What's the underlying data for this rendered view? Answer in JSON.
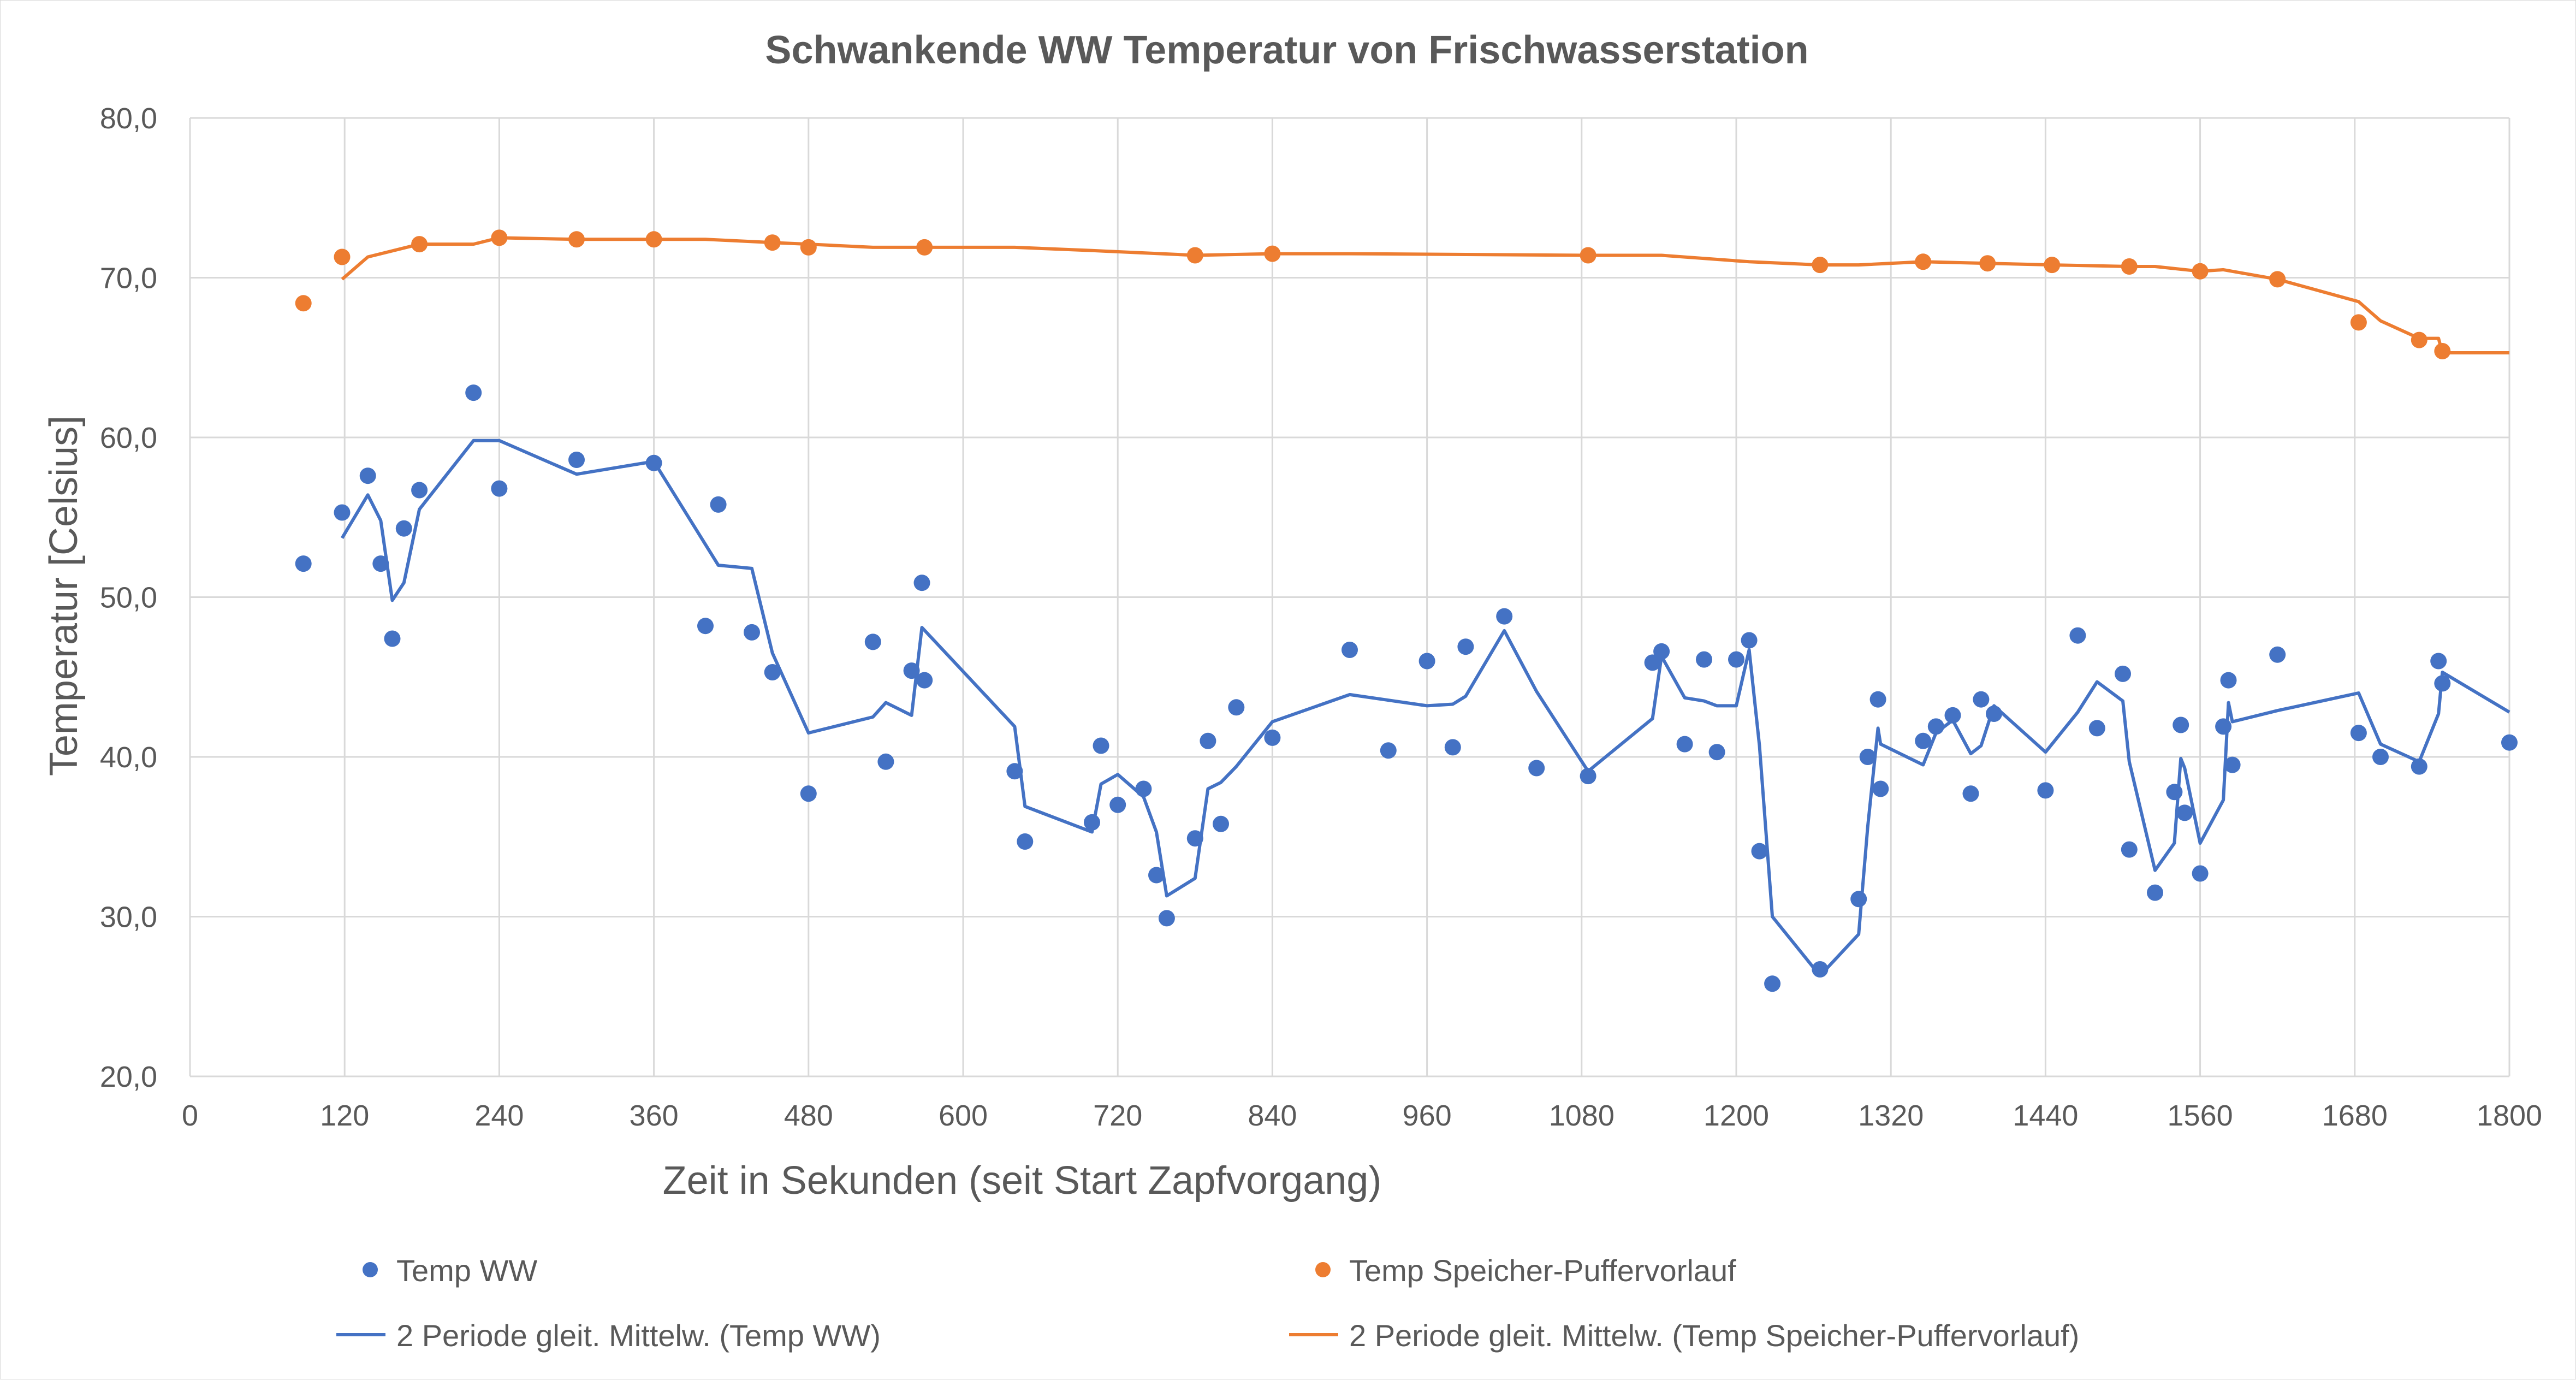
{
  "chart_data": {
    "type": "scatter",
    "title": "Schwankende WW Temperatur von Frischwasserstation",
    "xlabel": "Zeit in Sekunden (seit Start Zapfvorgang)",
    "ylabel": "Temperatur [Celsius]",
    "xlim": [
      0,
      1800
    ],
    "ylim": [
      20,
      80
    ],
    "x_ticks": [
      0,
      120,
      240,
      360,
      480,
      600,
      720,
      840,
      960,
      1080,
      1200,
      1320,
      1440,
      1560,
      1680,
      1800
    ],
    "x_tick_labels": [
      "0",
      "120",
      "240",
      "360",
      "480",
      "600",
      "720",
      "840",
      "960",
      "1080",
      "1200",
      "1320",
      "1440",
      "1560",
      "1680",
      "1800"
    ],
    "y_ticks": [
      20,
      30,
      40,
      50,
      60,
      70,
      80
    ],
    "y_tick_labels": [
      "20,0",
      "30,0",
      "40,0",
      "50,0",
      "60,0",
      "70,0",
      "80,0"
    ],
    "grid": true,
    "legend_position": "bottom",
    "colors": {
      "ww": "#4472c4",
      "speicher": "#ed7d31"
    },
    "series": [
      {
        "name": "Temp WW",
        "kind": "markers",
        "color": "#4472c4",
        "points": [
          [
            88,
            52.1
          ],
          [
            118,
            55.3
          ],
          [
            138,
            57.6
          ],
          [
            148,
            52.1
          ],
          [
            157,
            47.4
          ],
          [
            166,
            54.3
          ],
          [
            178,
            56.7
          ],
          [
            220,
            62.8
          ],
          [
            240,
            56.8
          ],
          [
            300,
            58.6
          ],
          [
            360,
            58.4
          ],
          [
            400,
            48.2
          ],
          [
            410,
            55.8
          ],
          [
            436,
            47.8
          ],
          [
            452,
            45.3
          ],
          [
            480,
            37.7
          ],
          [
            530,
            47.2
          ],
          [
            540,
            39.7
          ],
          [
            560,
            45.4
          ],
          [
            568,
            50.9
          ],
          [
            570,
            44.8
          ],
          [
            640,
            39.1
          ],
          [
            648,
            34.7
          ],
          [
            700,
            35.9
          ],
          [
            707,
            40.7
          ],
          [
            720,
            37.0
          ],
          [
            740,
            38.0
          ],
          [
            750,
            32.6
          ],
          [
            758,
            29.9
          ],
          [
            780,
            34.9
          ],
          [
            790,
            41.0
          ],
          [
            800,
            35.8
          ],
          [
            812,
            43.1
          ],
          [
            840,
            41.2
          ],
          [
            900,
            46.7
          ],
          [
            930,
            40.4
          ],
          [
            960,
            46.0
          ],
          [
            980,
            40.6
          ],
          [
            990,
            46.9
          ],
          [
            1020,
            48.8
          ],
          [
            1045,
            39.3
          ],
          [
            1085,
            38.8
          ],
          [
            1135,
            45.9
          ],
          [
            1142,
            46.6
          ],
          [
            1160,
            40.8
          ],
          [
            1175,
            46.1
          ],
          [
            1185,
            40.3
          ],
          [
            1200,
            46.1
          ],
          [
            1210,
            47.3
          ],
          [
            1218,
            34.1
          ],
          [
            1228,
            25.8
          ],
          [
            1265,
            26.7
          ],
          [
            1295,
            31.1
          ],
          [
            1302,
            40.0
          ],
          [
            1310,
            43.6
          ],
          [
            1312,
            38.0
          ],
          [
            1345,
            41.0
          ],
          [
            1355,
            41.9
          ],
          [
            1368,
            42.6
          ],
          [
            1382,
            37.7
          ],
          [
            1390,
            43.6
          ],
          [
            1400,
            42.7
          ],
          [
            1440,
            37.9
          ],
          [
            1465,
            47.6
          ],
          [
            1480,
            41.8
          ],
          [
            1500,
            45.2
          ],
          [
            1505,
            34.2
          ],
          [
            1525,
            31.5
          ],
          [
            1540,
            37.8
          ],
          [
            1545,
            42.0
          ],
          [
            1548,
            36.5
          ],
          [
            1560,
            32.7
          ],
          [
            1578,
            41.9
          ],
          [
            1582,
            44.8
          ],
          [
            1585,
            39.5
          ],
          [
            1620,
            46.4
          ],
          [
            1683,
            41.5
          ],
          [
            1700,
            40.0
          ],
          [
            1730,
            39.4
          ],
          [
            1745,
            46.0
          ],
          [
            1748,
            44.6
          ],
          [
            1800,
            40.9
          ]
        ]
      },
      {
        "name": "Temp Speicher-Puffervorlauf",
        "kind": "markers",
        "color": "#ed7d31",
        "points": [
          [
            88,
            68.4
          ],
          [
            118,
            71.3
          ],
          [
            178,
            72.1
          ],
          [
            240,
            72.5
          ],
          [
            300,
            72.4
          ],
          [
            360,
            72.4
          ],
          [
            452,
            72.2
          ],
          [
            480,
            71.9
          ],
          [
            570,
            71.9
          ],
          [
            780,
            71.4
          ],
          [
            840,
            71.5
          ],
          [
            1085,
            71.4
          ],
          [
            1265,
            70.8
          ],
          [
            1345,
            71.0
          ],
          [
            1395,
            70.9
          ],
          [
            1445,
            70.8
          ],
          [
            1505,
            70.7
          ],
          [
            1560,
            70.4
          ],
          [
            1620,
            69.9
          ],
          [
            1683,
            67.2
          ],
          [
            1730,
            66.1
          ],
          [
            1748,
            65.4
          ]
        ]
      },
      {
        "name": "2 Periode gleit. Mittelw. (Temp WW)",
        "kind": "line",
        "color": "#4472c4",
        "points": [
          [
            118,
            53.7
          ],
          [
            138,
            56.4
          ],
          [
            148,
            54.8
          ],
          [
            157,
            49.8
          ],
          [
            166,
            50.9
          ],
          [
            178,
            55.5
          ],
          [
            220,
            59.8
          ],
          [
            240,
            59.8
          ],
          [
            300,
            57.7
          ],
          [
            360,
            58.5
          ],
          [
            400,
            53.3
          ],
          [
            410,
            52.0
          ],
          [
            436,
            51.8
          ],
          [
            452,
            46.5
          ],
          [
            480,
            41.5
          ],
          [
            530,
            42.5
          ],
          [
            540,
            43.4
          ],
          [
            560,
            42.6
          ],
          [
            568,
            48.1
          ],
          [
            640,
            41.9
          ],
          [
            648,
            36.9
          ],
          [
            700,
            35.3
          ],
          [
            707,
            38.3
          ],
          [
            720,
            38.9
          ],
          [
            740,
            37.5
          ],
          [
            750,
            35.3
          ],
          [
            758,
            31.3
          ],
          [
            780,
            32.4
          ],
          [
            790,
            38.0
          ],
          [
            800,
            38.4
          ],
          [
            812,
            39.4
          ],
          [
            840,
            42.2
          ],
          [
            900,
            43.9
          ],
          [
            960,
            43.2
          ],
          [
            980,
            43.3
          ],
          [
            990,
            43.8
          ],
          [
            1020,
            47.9
          ],
          [
            1045,
            44.1
          ],
          [
            1085,
            39.1
          ],
          [
            1135,
            42.4
          ],
          [
            1142,
            46.3
          ],
          [
            1160,
            43.7
          ],
          [
            1175,
            43.5
          ],
          [
            1185,
            43.2
          ],
          [
            1200,
            43.2
          ],
          [
            1210,
            46.7
          ],
          [
            1218,
            40.7
          ],
          [
            1228,
            30.0
          ],
          [
            1265,
            26.3
          ],
          [
            1295,
            28.9
          ],
          [
            1302,
            35.6
          ],
          [
            1310,
            41.8
          ],
          [
            1312,
            40.8
          ],
          [
            1345,
            39.5
          ],
          [
            1355,
            41.5
          ],
          [
            1368,
            42.3
          ],
          [
            1382,
            40.2
          ],
          [
            1390,
            40.7
          ],
          [
            1400,
            43.2
          ],
          [
            1440,
            40.3
          ],
          [
            1465,
            42.8
          ],
          [
            1480,
            44.7
          ],
          [
            1500,
            43.5
          ],
          [
            1505,
            39.7
          ],
          [
            1525,
            32.9
          ],
          [
            1540,
            34.6
          ],
          [
            1545,
            39.9
          ],
          [
            1548,
            39.3
          ],
          [
            1560,
            34.6
          ],
          [
            1578,
            37.3
          ],
          [
            1582,
            43.4
          ],
          [
            1585,
            42.2
          ],
          [
            1620,
            42.9
          ],
          [
            1683,
            44.0
          ],
          [
            1700,
            40.8
          ],
          [
            1730,
            39.7
          ],
          [
            1745,
            42.7
          ],
          [
            1748,
            45.3
          ],
          [
            1800,
            42.8
          ]
        ]
      },
      {
        "name": "2 Periode gleit. Mittelw. (Temp Speicher-Puffervorlauf)",
        "kind": "line",
        "color": "#ed7d31",
        "points": [
          [
            118,
            69.9
          ],
          [
            138,
            71.3
          ],
          [
            178,
            72.1
          ],
          [
            220,
            72.1
          ],
          [
            240,
            72.5
          ],
          [
            300,
            72.4
          ],
          [
            360,
            72.4
          ],
          [
            400,
            72.4
          ],
          [
            452,
            72.2
          ],
          [
            480,
            72.1
          ],
          [
            530,
            71.9
          ],
          [
            570,
            71.9
          ],
          [
            640,
            71.9
          ],
          [
            700,
            71.7
          ],
          [
            780,
            71.4
          ],
          [
            840,
            71.5
          ],
          [
            900,
            71.5
          ],
          [
            1085,
            71.4
          ],
          [
            1142,
            71.4
          ],
          [
            1210,
            71.0
          ],
          [
            1265,
            70.8
          ],
          [
            1295,
            70.8
          ],
          [
            1345,
            71.0
          ],
          [
            1395,
            70.9
          ],
          [
            1445,
            70.8
          ],
          [
            1505,
            70.7
          ],
          [
            1525,
            70.7
          ],
          [
            1560,
            70.4
          ],
          [
            1578,
            70.5
          ],
          [
            1620,
            69.9
          ],
          [
            1683,
            68.5
          ],
          [
            1700,
            67.3
          ],
          [
            1730,
            66.2
          ],
          [
            1745,
            66.2
          ],
          [
            1748,
            65.3
          ],
          [
            1800,
            65.3
          ]
        ]
      }
    ]
  }
}
